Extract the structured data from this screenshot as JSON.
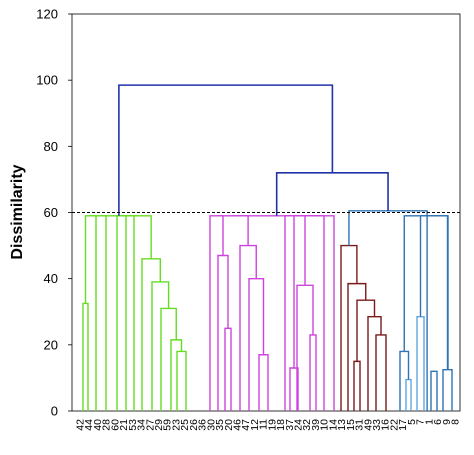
{
  "chart_data": {
    "type": "dendrogram",
    "title": "",
    "xlabel": "",
    "ylabel": "Dissimilarity",
    "ylim": [
      0,
      120
    ],
    "yticks": [
      0,
      20,
      40,
      60,
      80,
      100,
      120
    ],
    "cutoff_line": {
      "value": 60,
      "style": "dashed",
      "color": "#000000"
    },
    "cluster_colors": {
      "green": "#66dd22",
      "magenta": "#cc44dd",
      "darkred": "#7a1a1a",
      "blue": "#2e74b5",
      "lightblue": "#5fa8e0",
      "top": "#2233aa"
    },
    "leaves": [
      "42",
      "44",
      "40",
      "28",
      "60",
      "21",
      "53",
      "34",
      "27",
      "29",
      "59",
      "23",
      "25",
      "26",
      "36",
      "30",
      "35",
      "20",
      "46",
      "47",
      "12",
      "11",
      "19",
      "18",
      "37",
      "24",
      "32",
      "39",
      "10",
      "14",
      "13",
      "15",
      "31",
      "49",
      "33",
      "16",
      "22",
      "17",
      "5",
      "7",
      "1",
      "6",
      "9",
      "8"
    ],
    "merges": [
      {
        "color": "green",
        "x1": 83,
        "x2": 88,
        "height": 32.5
      },
      {
        "color": "green",
        "x1": 177,
        "x2": 186,
        "height": 18
      },
      {
        "color": "green",
        "x1": 171,
        "x2": 181.5,
        "height": 21.5
      },
      {
        "color": "green",
        "x1": 161,
        "x2": 176.25,
        "height": 31
      },
      {
        "color": "green",
        "x1": 152,
        "x2": 168.6,
        "height": 39
      },
      {
        "color": "green",
        "x1": 142,
        "x2": 160.3,
        "height": 46
      },
      {
        "color": "green",
        "x1": 85.5,
        "x2": 96,
        "height": 59
      },
      {
        "color": "green",
        "x1": 90.75,
        "x2": 106,
        "height": 59
      },
      {
        "color": "green",
        "x1": 117,
        "x2": 126,
        "height": 59
      },
      {
        "color": "green",
        "x1": 121.5,
        "x2": 134,
        "height": 59
      },
      {
        "color": "green",
        "x1": 127.75,
        "x2": 151.15,
        "height": 59
      },
      {
        "color": "green",
        "x1": 98.4,
        "x2": 139.45,
        "height": 59
      },
      {
        "color": "magenta",
        "x1": 225,
        "x2": 231,
        "height": 25
      },
      {
        "color": "magenta",
        "x1": 218,
        "x2": 228,
        "height": 47
      },
      {
        "color": "magenta",
        "x1": 259,
        "x2": 268,
        "height": 17
      },
      {
        "color": "magenta",
        "x1": 249,
        "x2": 263.5,
        "height": 40
      },
      {
        "color": "magenta",
        "x1": 240,
        "x2": 256.25,
        "height": 50
      },
      {
        "color": "magenta",
        "x1": 210,
        "x2": 223,
        "height": 59
      },
      {
        "color": "magenta",
        "x1": 216.5,
        "x2": 248.1,
        "height": 59
      },
      {
        "color": "magenta",
        "x1": 290,
        "x2": 298,
        "height": 13
      },
      {
        "color": "magenta",
        "x1": 310,
        "x2": 316,
        "height": 23
      },
      {
        "color": "magenta",
        "x1": 297,
        "x2": 313,
        "height": 38
      },
      {
        "color": "magenta",
        "x1": 294,
        "x2": 305,
        "height": 59
      },
      {
        "color": "magenta",
        "x1": 285,
        "x2": 299.5,
        "height": 59
      },
      {
        "color": "magenta",
        "x1": 292.25,
        "x2": 324,
        "height": 59
      },
      {
        "color": "magenta",
        "x1": 308.1,
        "x2": 334,
        "height": 59
      },
      {
        "color": "magenta",
        "x1": 232.3,
        "x2": 321.05,
        "height": 59
      },
      {
        "color": "darkred",
        "x1": 354,
        "x2": 360,
        "height": 15
      },
      {
        "color": "darkred",
        "x1": 376,
        "x2": 386,
        "height": 23
      },
      {
        "color": "darkred",
        "x1": 368,
        "x2": 381,
        "height": 28.5
      },
      {
        "color": "darkred",
        "x1": 357,
        "x2": 374.5,
        "height": 33.5
      },
      {
        "color": "darkred",
        "x1": 348,
        "x2": 365.75,
        "height": 38.5
      },
      {
        "color": "darkred",
        "x1": 341,
        "x2": 356.9,
        "height": 50
      },
      {
        "color": "lightblue",
        "x1": 406,
        "x2": 411,
        "height": 9.5
      },
      {
        "color": "lightblue",
        "x1": 417,
        "x2": 424,
        "height": 28.5
      },
      {
        "color": "blue",
        "x1": 400,
        "x2": 408.5,
        "height": 18
      },
      {
        "color": "blue",
        "x1": 431,
        "x2": 437,
        "height": 12
      },
      {
        "color": "blue",
        "x1": 443,
        "x2": 452,
        "height": 12.5
      },
      {
        "color": "blue",
        "x1": 420.5,
        "x2": 447.5,
        "height": 59
      },
      {
        "color": "blue",
        "x1": 434,
        "x2": 448,
        "height": 59
      },
      {
        "color": "blue",
        "x1": 404.25,
        "x2": 441,
        "height": 59
      },
      {
        "color": "blue",
        "x1": 348.95,
        "x2": 427.1,
        "height": 60.5
      },
      {
        "color": "top",
        "x1": 276.7,
        "x2": 388.05,
        "height": 72
      },
      {
        "color": "top",
        "x1": 118.9,
        "x2": 332.4,
        "height": 98.5
      }
    ]
  }
}
